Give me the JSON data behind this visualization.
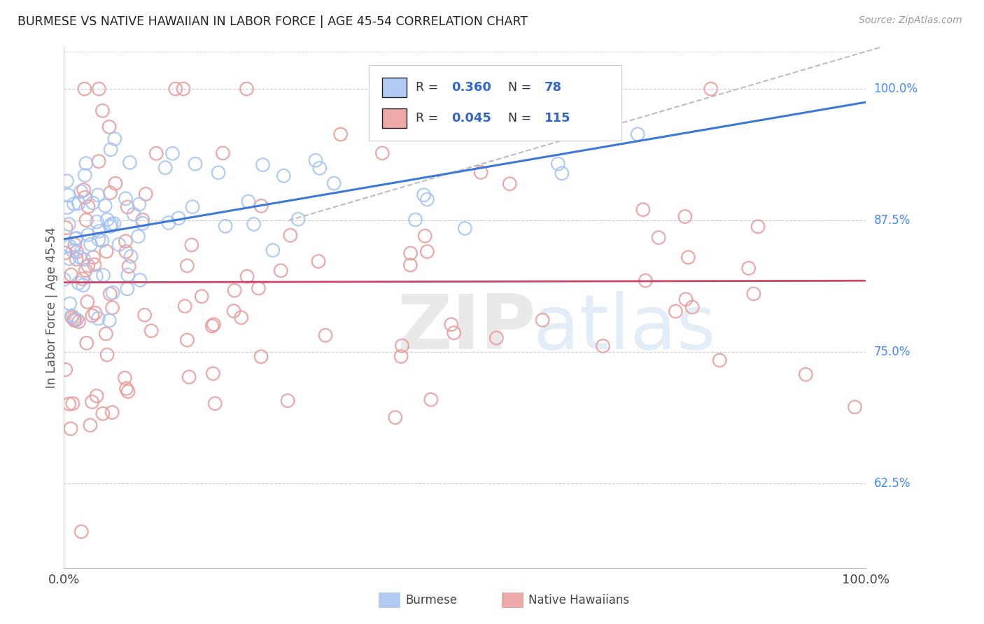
{
  "title": "BURMESE VS NATIVE HAWAIIAN IN LABOR FORCE | AGE 45-54 CORRELATION CHART",
  "source": "Source: ZipAtlas.com",
  "ylabel": "In Labor Force | Age 45-54",
  "burmese_R": 0.36,
  "burmese_N": 78,
  "hawaiian_R": 0.045,
  "hawaiian_N": 115,
  "burmese_color": "#a4c2f4",
  "hawaiian_color": "#ea9999",
  "burmese_line_color": "#3c78d8",
  "hawaiian_line_color": "#cc4466",
  "ref_line_color": "#aaaacc",
  "background_color": "#ffffff",
  "grid_color": "#cccccc",
  "legend_label_burmese": "Burmese",
  "legend_label_hawaiian": "Native Hawaiians",
  "ytick_vals": [
    0.625,
    0.75,
    0.875,
    1.0
  ],
  "ytick_labels": [
    "62.5%",
    "75.0%",
    "87.5%",
    "100.0%"
  ],
  "xtick_labels": [
    "0.0%",
    "100.0%"
  ],
  "xlim": [
    0.0,
    1.0
  ],
  "ylim": [
    0.545,
    1.04
  ]
}
